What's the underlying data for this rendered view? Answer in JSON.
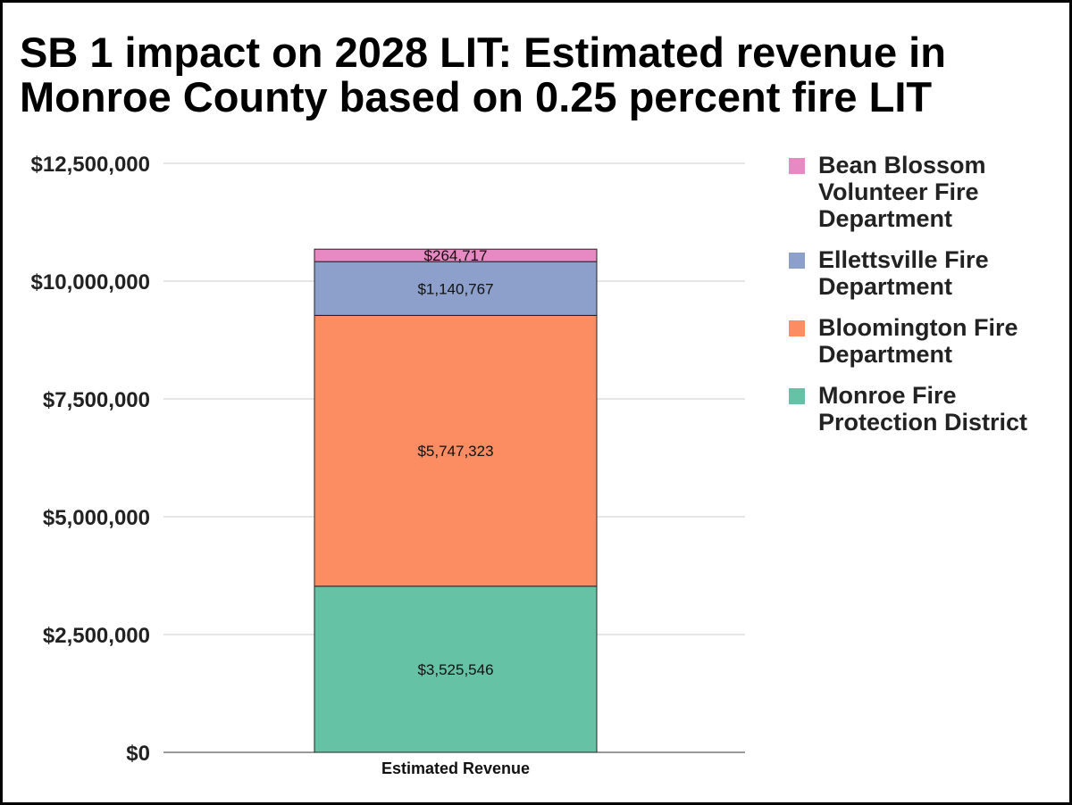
{
  "chart_data": {
    "type": "bar",
    "stacked": true,
    "title": "SB 1 impact on 2028 LIT: Estimated revenue in Monroe County based on 0.25 percent fire LIT",
    "xlabel": "",
    "ylabel": "",
    "categories": [
      "Estimated Revenue"
    ],
    "ylim": [
      0,
      12500000
    ],
    "y_ticks": [
      {
        "value": 0,
        "label": "$0"
      },
      {
        "value": 2500000,
        "label": "$2,500,000"
      },
      {
        "value": 5000000,
        "label": "$5,000,000"
      },
      {
        "value": 7500000,
        "label": "$7,500,000"
      },
      {
        "value": 10000000,
        "label": "$10,000,000"
      },
      {
        "value": 12500000,
        "label": "$12,500,000"
      }
    ],
    "grid": true,
    "legend_position": "right",
    "series": [
      {
        "name": "Monroe Fire Protection District",
        "values": [
          3525546
        ],
        "label": "$3,525,546",
        "color": "#66c2a5"
      },
      {
        "name": "Bloomington Fire Department",
        "values": [
          5747323
        ],
        "label": "$5,747,323",
        "color": "#fc8d62"
      },
      {
        "name": "Ellettsville Fire Department",
        "values": [
          1140767
        ],
        "label": "$1,140,767",
        "color": "#8da0cb"
      },
      {
        "name": "Bean Blossom Volunteer Fire Department",
        "values": [
          264717
        ],
        "label": "$264,717",
        "color": "#e78ac3"
      }
    ]
  },
  "legend": {
    "items": [
      {
        "label": "Bean Blossom\nVolunteer Fire\nDepartment",
        "color": "#e78ac3"
      },
      {
        "label": "Ellettsville Fire\nDepartment",
        "color": "#8da0cb"
      },
      {
        "label": "Bloomington Fire\nDepartment",
        "color": "#fc8d62"
      },
      {
        "label": "Monroe Fire\nProtection District",
        "color": "#66c2a5"
      }
    ]
  }
}
